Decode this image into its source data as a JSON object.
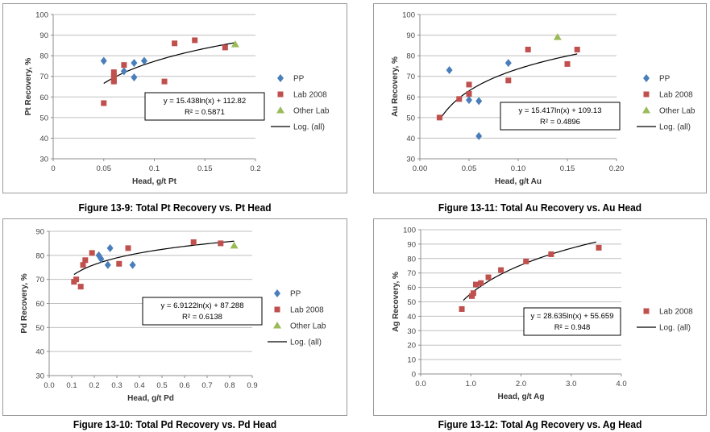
{
  "colors": {
    "pp": "#4a7ebb",
    "lab2008": "#c0504d",
    "other_lab": "#9bbb59",
    "trend": "#000000",
    "grid": "#bfbfbf"
  },
  "chart_data": [
    {
      "id": "pt",
      "type": "scatter",
      "caption": "Figure 13-9: Total Pt Recovery vs. Pt Head",
      "xlabel": "Head, g/t Pt",
      "ylabel": "Pt Recovery, %",
      "xlim": [
        0,
        0.2
      ],
      "ylim": [
        30,
        100
      ],
      "xticks": [
        0,
        0.05,
        0.1,
        0.15,
        0.2
      ],
      "xtick_labels": [
        "0",
        "0.05",
        "0.1",
        "0.15",
        "0.2"
      ],
      "yticks": [
        30,
        40,
        50,
        60,
        70,
        80,
        90,
        100
      ],
      "ytick_labels": [
        "30",
        "40",
        "50",
        "60",
        "70",
        "80",
        "90",
        "100"
      ],
      "series": [
        {
          "name": "PP",
          "marker": "diamond",
          "color": "#4a7ebb",
          "points": [
            [
              0.05,
              77.5
            ],
            [
              0.07,
              72.5
            ],
            [
              0.08,
              76.5
            ],
            [
              0.09,
              77.5
            ],
            [
              0.08,
              69.5
            ]
          ]
        },
        {
          "name": "Lab 2008",
          "marker": "square",
          "color": "#c0504d",
          "points": [
            [
              0.05,
              57.0
            ],
            [
              0.06,
              72.0
            ],
            [
              0.06,
              70.0
            ],
            [
              0.06,
              68.0
            ],
            [
              0.06,
              67.5
            ],
            [
              0.07,
              75.5
            ],
            [
              0.11,
              67.5
            ],
            [
              0.12,
              86.0
            ],
            [
              0.14,
              87.5
            ],
            [
              0.17,
              84.0
            ]
          ]
        },
        {
          "name": "Other Lab",
          "marker": "triangle",
          "color": "#9bbb59",
          "points": [
            [
              0.18,
              85.5
            ]
          ]
        }
      ],
      "trend": {
        "name": "Log. (all)",
        "a": 15.438,
        "b": 112.82,
        "x_range": [
          0.05,
          0.18
        ]
      },
      "equation": "y = 15.438ln(x) + 112.82",
      "r_squared": "R² = 0.5871",
      "legend": [
        "PP",
        "Lab 2008",
        "Other Lab",
        "Log. (all)"
      ]
    },
    {
      "id": "au",
      "type": "scatter",
      "caption": "Figure 13-11: Total Au Recovery vs. Au Head",
      "xlabel": "Head, g/t Au",
      "ylabel": "Au Recovery, %",
      "xlim": [
        0,
        0.2
      ],
      "ylim": [
        30,
        100
      ],
      "xticks": [
        0,
        0.05,
        0.1,
        0.15,
        0.2
      ],
      "xtick_labels": [
        "0.00",
        "0.05",
        "0.10",
        "0.15",
        "0.20"
      ],
      "yticks": [
        30,
        40,
        50,
        60,
        70,
        80,
        90,
        100
      ],
      "ytick_labels": [
        "30",
        "40",
        "50",
        "60",
        "70",
        "80",
        "90",
        "100"
      ],
      "series": [
        {
          "name": "PP",
          "marker": "diamond",
          "color": "#4a7ebb",
          "points": [
            [
              0.03,
              73.0
            ],
            [
              0.05,
              58.5
            ],
            [
              0.06,
              58.0
            ],
            [
              0.06,
              41.0
            ],
            [
              0.09,
              76.5
            ]
          ]
        },
        {
          "name": "Lab 2008",
          "marker": "square",
          "color": "#c0504d",
          "points": [
            [
              0.02,
              50.0
            ],
            [
              0.04,
              59.0
            ],
            [
              0.05,
              61.5
            ],
            [
              0.05,
              66.0
            ],
            [
              0.09,
              68.0
            ],
            [
              0.11,
              83.0
            ],
            [
              0.15,
              76.0
            ],
            [
              0.16,
              83.0
            ]
          ]
        },
        {
          "name": "Other Lab",
          "marker": "triangle",
          "color": "#9bbb59",
          "points": [
            [
              0.14,
              89.0
            ]
          ]
        }
      ],
      "trend": {
        "name": "Log. (all)",
        "a": 15.417,
        "b": 109.13,
        "x_range": [
          0.02,
          0.16
        ]
      },
      "equation": "y = 15.417ln(x) + 109.13",
      "r_squared": "R² = 0.4896",
      "legend": [
        "PP",
        "Lab 2008",
        "Other Lab",
        "Log. (all)"
      ]
    },
    {
      "id": "pd",
      "type": "scatter",
      "caption": "Figure 13-10: Total Pd Recovery vs. Pd Head",
      "xlabel": "Head, g/t Pd",
      "ylabel": "Pd Recovery, %",
      "xlim": [
        0,
        0.9
      ],
      "ylim": [
        30,
        90
      ],
      "xticks": [
        0,
        0.1,
        0.2,
        0.3,
        0.4,
        0.5,
        0.6,
        0.7,
        0.8,
        0.9
      ],
      "xtick_labels": [
        "0.0",
        "0.1",
        "0.2",
        "0.3",
        "0.4",
        "0.5",
        "0.6",
        "0.7",
        "0.8",
        "0.9"
      ],
      "yticks": [
        30,
        40,
        50,
        60,
        70,
        80,
        90
      ],
      "ytick_labels": [
        "30",
        "40",
        "50",
        "60",
        "70",
        "80",
        "90"
      ],
      "series": [
        {
          "name": "PP",
          "marker": "diamond",
          "color": "#4a7ebb",
          "points": [
            [
              0.22,
              80.0
            ],
            [
              0.23,
              78.5
            ],
            [
              0.26,
              76.0
            ],
            [
              0.27,
              83.0
            ],
            [
              0.37,
              76.0
            ]
          ]
        },
        {
          "name": "Lab 2008",
          "marker": "square",
          "color": "#c0504d",
          "points": [
            [
              0.11,
              69.0
            ],
            [
              0.12,
              70.0
            ],
            [
              0.14,
              67.0
            ],
            [
              0.15,
              76.0
            ],
            [
              0.16,
              78.0
            ],
            [
              0.19,
              81.0
            ],
            [
              0.31,
              76.5
            ],
            [
              0.35,
              83.0
            ],
            [
              0.64,
              85.5
            ],
            [
              0.76,
              85.0
            ]
          ]
        },
        {
          "name": "Other Lab",
          "marker": "triangle",
          "color": "#9bbb59",
          "points": [
            [
              0.82,
              84.0
            ]
          ]
        }
      ],
      "trend": {
        "name": "Log. (all)",
        "a": 6.9122,
        "b": 87.288,
        "x_range": [
          0.11,
          0.82
        ]
      },
      "equation": "y = 6.9122ln(x) + 87.288",
      "r_squared": "R² = 0.6138",
      "legend": [
        "PP",
        "Lab 2008",
        "Other Lab",
        "Log. (all)"
      ]
    },
    {
      "id": "ag",
      "type": "scatter",
      "caption": "Figure 13-12: Total Ag Recovery vs. Ag Head",
      "xlabel": "Head, g/t Ag",
      "ylabel": "Ag Recovery, %",
      "xlim": [
        0,
        4
      ],
      "ylim": [
        0,
        100
      ],
      "xticks": [
        0,
        1,
        2,
        3,
        4
      ],
      "xtick_labels": [
        "0.0",
        "1.0",
        "2.0",
        "3.0",
        "4.0"
      ],
      "yticks": [
        0,
        10,
        20,
        30,
        40,
        50,
        60,
        70,
        80,
        90,
        100
      ],
      "ytick_labels": [
        "0",
        "10",
        "20",
        "30",
        "40",
        "50",
        "60",
        "70",
        "80",
        "90",
        "100"
      ],
      "series": [
        {
          "name": "Lab 2008",
          "marker": "square",
          "color": "#c0504d",
          "points": [
            [
              0.82,
              45.0
            ],
            [
              1.02,
              54.0
            ],
            [
              1.05,
              56.0
            ],
            [
              1.1,
              62.0
            ],
            [
              1.2,
              63.0
            ],
            [
              1.35,
              67.0
            ],
            [
              1.6,
              72.0
            ],
            [
              2.1,
              78.0
            ],
            [
              2.6,
              83.0
            ],
            [
              3.55,
              87.5
            ]
          ]
        }
      ],
      "trend": {
        "name": "Log. (all)",
        "a": 28.635,
        "b": 55.659,
        "x_range": [
          0.85,
          3.5
        ]
      },
      "equation": "y = 28.635ln(x) + 55.659",
      "r_squared": "R² = 0.948",
      "legend": [
        "Lab 2008",
        "Log. (all)"
      ]
    }
  ]
}
